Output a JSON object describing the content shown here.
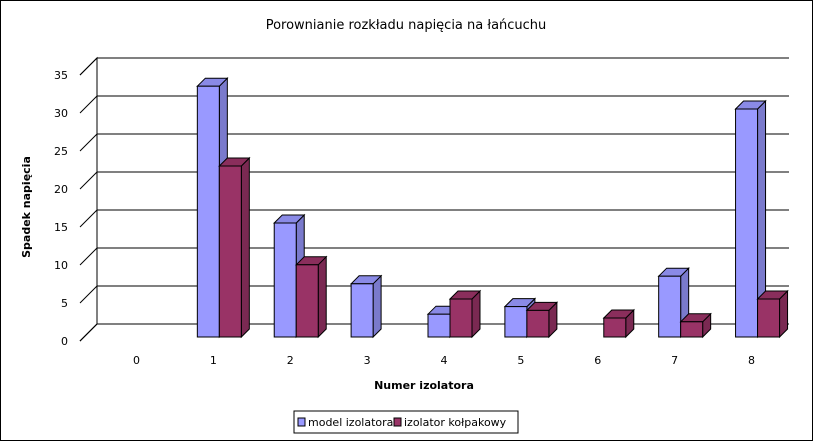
{
  "chart_data": {
    "type": "bar",
    "title": "Porownianie rozkładu napięcia na łańcuchu",
    "xlabel": "Numer izolatora",
    "ylabel": "Spadek napięcia",
    "categories": [
      "0",
      "1",
      "2",
      "3",
      "4",
      "5",
      "6",
      "7",
      "8"
    ],
    "yticks": [
      "0",
      "5",
      "10",
      "15",
      "20",
      "25",
      "30",
      "35"
    ],
    "ylim": [
      0,
      35
    ],
    "grid": true,
    "legend_position": "bottom",
    "series": [
      {
        "name": "model izolatora",
        "color": "#9999ff",
        "values": [
          0,
          33,
          15,
          7,
          3,
          4,
          0,
          8,
          30
        ]
      },
      {
        "name": "izolator kołpakowy",
        "color": "#993366",
        "values": [
          0,
          22.5,
          9.5,
          0,
          5,
          3.5,
          2.5,
          2,
          5
        ]
      }
    ]
  }
}
